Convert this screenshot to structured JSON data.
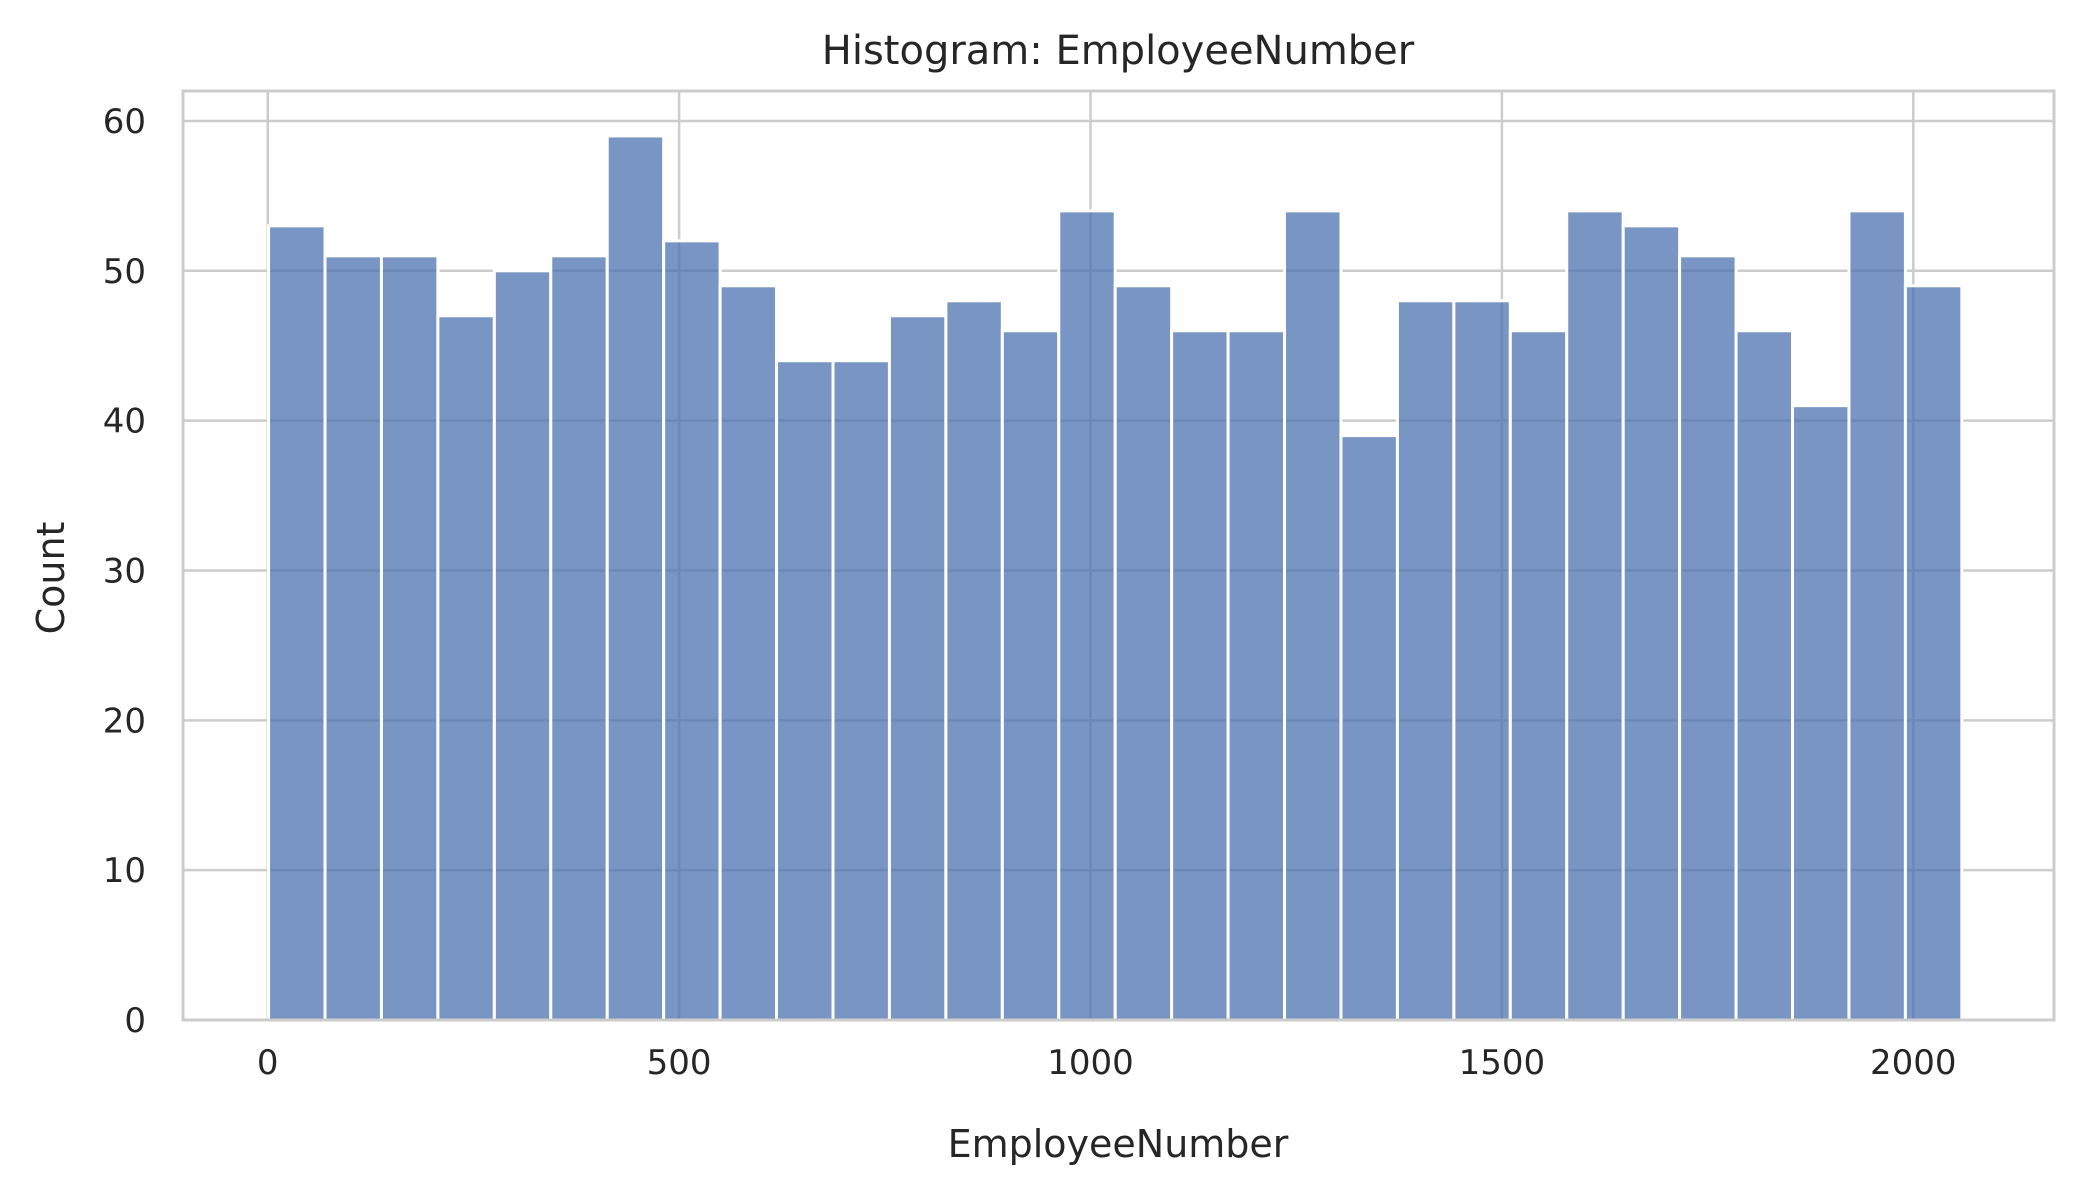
{
  "chart_data": {
    "type": "bar",
    "subtype": "histogram",
    "title": "Histogram: EmployeeNumber",
    "xlabel": "EmployeeNumber",
    "ylabel": "Count",
    "xlim": [
      -103,
      2171
    ],
    "ylim": [
      0,
      62
    ],
    "xticks": [
      0,
      500,
      1000,
      1500,
      2000
    ],
    "yticks": [
      0,
      10,
      20,
      30,
      40,
      50,
      60
    ],
    "grid": true,
    "legend": "none",
    "bin_start": 1,
    "bin_width": 68.6,
    "bins": [
      {
        "x0": 1,
        "x1": 69.6,
        "count": 53
      },
      {
        "x0": 69.6,
        "x1": 138.2,
        "count": 51
      },
      {
        "x0": 138.2,
        "x1": 206.8,
        "count": 51
      },
      {
        "x0": 206.8,
        "x1": 275.4,
        "count": 47
      },
      {
        "x0": 275.4,
        "x1": 344,
        "count": 50
      },
      {
        "x0": 344,
        "x1": 412.6,
        "count": 51
      },
      {
        "x0": 412.6,
        "x1": 481.2,
        "count": 59
      },
      {
        "x0": 481.2,
        "x1": 549.8,
        "count": 52
      },
      {
        "x0": 549.8,
        "x1": 618.4,
        "count": 49
      },
      {
        "x0": 618.4,
        "x1": 687,
        "count": 44
      },
      {
        "x0": 687,
        "x1": 755.6,
        "count": 44
      },
      {
        "x0": 755.6,
        "x1": 824.2,
        "count": 47
      },
      {
        "x0": 824.2,
        "x1": 892.8,
        "count": 48
      },
      {
        "x0": 892.8,
        "x1": 961.4,
        "count": 46
      },
      {
        "x0": 961.4,
        "x1": 1030,
        "count": 54
      },
      {
        "x0": 1030,
        "x1": 1098.6,
        "count": 49
      },
      {
        "x0": 1098.6,
        "x1": 1167.2,
        "count": 46
      },
      {
        "x0": 1167.2,
        "x1": 1235.8,
        "count": 46
      },
      {
        "x0": 1235.8,
        "x1": 1304.4,
        "count": 54
      },
      {
        "x0": 1304.4,
        "x1": 1373,
        "count": 39
      },
      {
        "x0": 1373,
        "x1": 1441.6,
        "count": 48
      },
      {
        "x0": 1441.6,
        "x1": 1510.2,
        "count": 48
      },
      {
        "x0": 1510.2,
        "x1": 1578.8,
        "count": 46
      },
      {
        "x0": 1578.8,
        "x1": 1647.4,
        "count": 54
      },
      {
        "x0": 1647.4,
        "x1": 1716,
        "count": 53
      },
      {
        "x0": 1716,
        "x1": 1784.6,
        "count": 51
      },
      {
        "x0": 1784.6,
        "x1": 1853.2,
        "count": 46
      },
      {
        "x0": 1853.2,
        "x1": 1921.8,
        "count": 41
      },
      {
        "x0": 1921.8,
        "x1": 1990.4,
        "count": 54
      },
      {
        "x0": 1990.4,
        "x1": 2059,
        "count": 49
      }
    ],
    "colors": {
      "bar_fill": "#4c72b0",
      "bar_opacity": 0.75,
      "bar_edge": "#ffffff",
      "grid": "#cccccc",
      "spine": "#cccccc",
      "text": "#262626",
      "background": "#ffffff"
    }
  }
}
